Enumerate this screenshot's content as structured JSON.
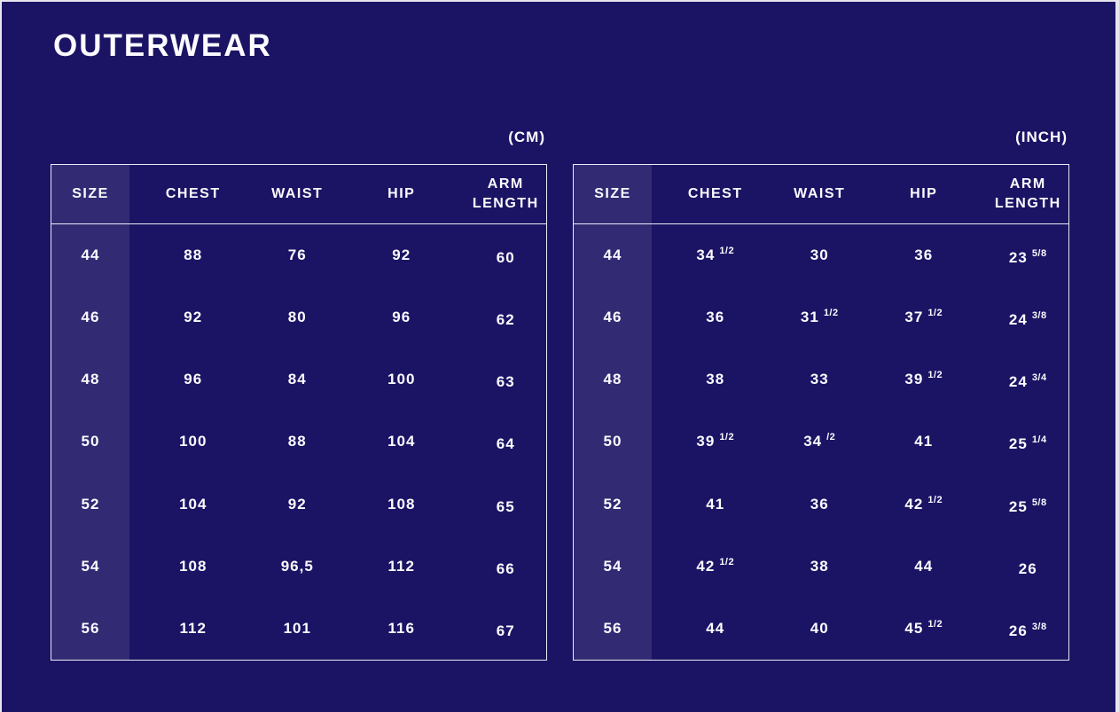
{
  "page": {
    "title": "OUTERWEAR",
    "background_color": "#1b1464",
    "size_column_color": "#322e73",
    "table_border_color": "#eceaf4",
    "text_color": "#ffffff",
    "page_edge_color": "#e7e6ee"
  },
  "tables": [
    {
      "unit_label": "(CM)",
      "columns": [
        "SIZE",
        "CHEST",
        "WAIST",
        "HIP",
        "ARM\nLENGTH"
      ],
      "rows": [
        [
          "44",
          "88",
          "76",
          "92",
          "60"
        ],
        [
          "46",
          "92",
          "80",
          "96",
          "62"
        ],
        [
          "48",
          "96",
          "84",
          "100",
          "63"
        ],
        [
          "50",
          "100",
          "88",
          "104",
          "64"
        ],
        [
          "52",
          "104",
          "92",
          "108",
          "65"
        ],
        [
          "54",
          "108",
          "96,5",
          "112",
          "66"
        ],
        [
          "56",
          "112",
          "101",
          "116",
          "67"
        ]
      ]
    },
    {
      "unit_label": "(INCH)",
      "columns": [
        "SIZE",
        "CHEST",
        "WAIST",
        "HIP",
        "ARM\nLENGTH"
      ],
      "rows": [
        [
          "44",
          "34 1/2",
          "30",
          "36",
          "23 5/8"
        ],
        [
          "46",
          "36",
          "31 1/2",
          "37 1/2",
          "24 3/8"
        ],
        [
          "48",
          "38",
          "33",
          "39 1/2",
          "24 3/4"
        ],
        [
          "50",
          "39 1/2",
          "34 /2",
          "41",
          "25 1/4"
        ],
        [
          "52",
          "41",
          "36",
          "42 1/2",
          "25 5/8"
        ],
        [
          "54",
          "42 1/2",
          "38",
          "44",
          "26"
        ],
        [
          "56",
          "44",
          "40",
          "45 1/2",
          "26 3/8"
        ]
      ]
    }
  ],
  "chart_data": [
    {
      "type": "table",
      "title": "OUTERWEAR",
      "unit": "CM",
      "columns": [
        "SIZE",
        "CHEST",
        "WAIST",
        "HIP",
        "ARM LENGTH"
      ],
      "rows": [
        [
          44,
          88,
          76,
          92,
          60
        ],
        [
          46,
          92,
          80,
          96,
          62
        ],
        [
          48,
          96,
          84,
          100,
          63
        ],
        [
          50,
          100,
          88,
          104,
          64
        ],
        [
          52,
          104,
          92,
          108,
          65
        ],
        [
          54,
          108,
          96.5,
          112,
          66
        ],
        [
          56,
          112,
          101,
          116,
          67
        ]
      ]
    },
    {
      "type": "table",
      "title": "OUTERWEAR",
      "unit": "INCH",
      "columns": [
        "SIZE",
        "CHEST",
        "WAIST",
        "HIP",
        "ARM LENGTH"
      ],
      "rows": [
        [
          "44",
          "34 1/2",
          "30",
          "36",
          "23 5/8"
        ],
        [
          "46",
          "36",
          "31 1/2",
          "37 1/2",
          "24 3/8"
        ],
        [
          "48",
          "38",
          "33",
          "39 1/2",
          "24 3/4"
        ],
        [
          "50",
          "39 1/2",
          "34 /2",
          "41",
          "25 1/4"
        ],
        [
          "52",
          "41",
          "36",
          "42 1/2",
          "25 5/8"
        ],
        [
          "54",
          "42 1/2",
          "38",
          "44",
          "26"
        ],
        [
          "56",
          "44",
          "40",
          "45 1/2",
          "26 3/8"
        ]
      ]
    }
  ]
}
